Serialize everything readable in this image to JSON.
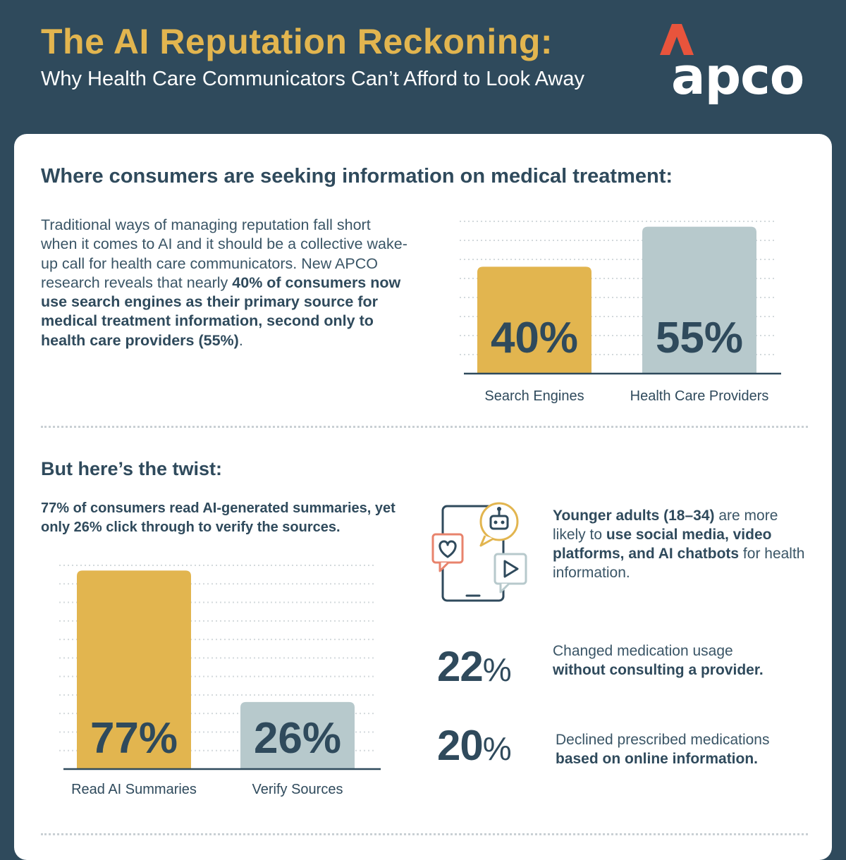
{
  "header": {
    "title": "The AI Reputation Reckoning:",
    "subtitle": "Why Health Care Communicators Can’t Afford to Look Away",
    "logo_text": "apco"
  },
  "colors": {
    "navy": "#2f4a5c",
    "gold": "#e2b54f",
    "slate": "#b7c9cc",
    "accent_red": "#e8543c",
    "grid": "#d3d9dc"
  },
  "section1": {
    "heading": "Where consumers are seeking information on medical treatment:",
    "body_plain": "Traditional ways of managing reputation fall short when it comes to AI and it should be a collective wake-up call for health care communicators. New APCO research reveals that nearly ",
    "body_bold": "40% of consumers now use search engines as their primary source for medical treatment information, second only to health care providers (55%)",
    "body_end": "."
  },
  "section2": {
    "heading": "But here’s the twist:",
    "lead": "77% of consumers read AI-generated summaries, yet only 26% click through to verify the sources.",
    "young_bold": "Younger adults (18–34)",
    "young_mid": " are more likely to ",
    "young_bold2": "use social media, video platforms, and AI chatbots",
    "young_end": " for health information.",
    "stats": [
      {
        "number": "22",
        "unit": "%",
        "plain": "Changed medication usage ",
        "bold": "without consulting a provider."
      },
      {
        "number": "20",
        "unit": "%",
        "plain": "Declined prescribed medications ",
        "bold": "based on online information."
      }
    ]
  },
  "chart_data": [
    {
      "type": "bar",
      "title": "",
      "categories": [
        "Search Engines",
        "Health Care Providers"
      ],
      "values": [
        40,
        55
      ],
      "labels": [
        "40%",
        "55%"
      ],
      "colors": [
        "#e2b54f",
        "#b7c9cc"
      ],
      "ylim": [
        0,
        70
      ],
      "grid": true
    },
    {
      "type": "bar",
      "title": "",
      "categories": [
        "Read AI Summaries",
        "Verify Sources"
      ],
      "values": [
        77,
        26
      ],
      "labels": [
        "77%",
        "26%"
      ],
      "colors": [
        "#e2b54f",
        "#b7c9cc"
      ],
      "ylim": [
        0,
        90
      ],
      "grid": true
    }
  ]
}
